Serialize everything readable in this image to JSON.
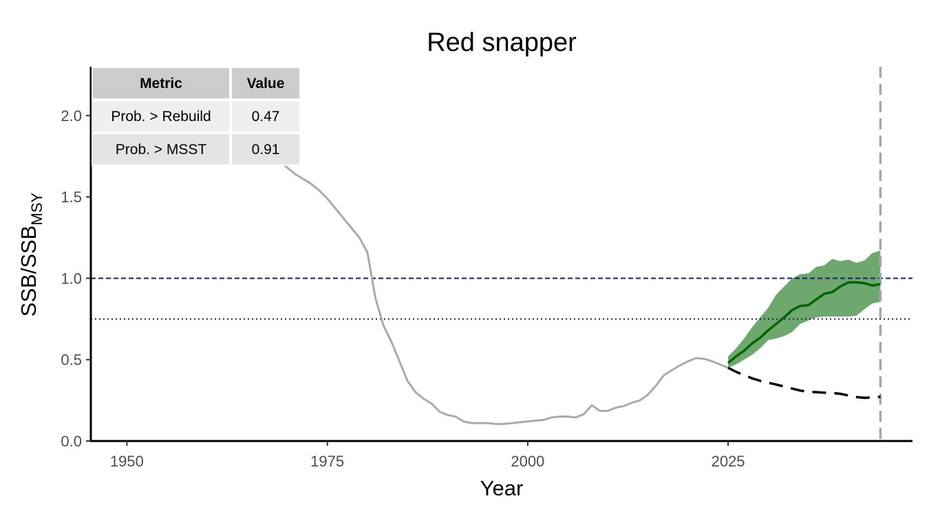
{
  "chart_data": {
    "type": "line",
    "title": "Red snapper",
    "xlabel": "Year",
    "ylabel": {
      "main": "SSB/SSB",
      "subscript": "MSY"
    },
    "xlim": [
      1945.5,
      2048
    ],
    "ylim": [
      0,
      2.3
    ],
    "xticks": [
      1950,
      1975,
      2000,
      2025
    ],
    "yticks": [
      "0.0",
      "0.5",
      "1.0",
      "1.5",
      "2.0"
    ],
    "grid": false,
    "reference_lines": [
      {
        "y": 1.0,
        "style": "dashed",
        "color": "#191970"
      },
      {
        "y": 0.75,
        "style": "dotted",
        "color": "#191970"
      }
    ],
    "vertical_line": {
      "x": 2044,
      "style": "dashed",
      "color": "#a6a6a6"
    },
    "series": [
      {
        "color": "#aaaaaa",
        "x": [
          1965,
          1966,
          1967,
          1968,
          1969,
          1970,
          1971,
          1972,
          1973,
          1974,
          1975,
          1976,
          1977,
          1978,
          1979,
          1980,
          1981,
          1982,
          1983,
          1984,
          1985,
          1986,
          1987,
          1988,
          1989,
          1990,
          1991,
          1992,
          1993,
          1994,
          1995,
          1996,
          1997,
          1998,
          1999,
          2000,
          2001,
          2002,
          2003,
          2004,
          2005,
          2006,
          2007,
          2008,
          2009,
          2010,
          2011,
          2012,
          2013,
          2014,
          2015,
          2016,
          2017,
          2018,
          2019,
          2020,
          2021,
          2022,
          2023,
          2024,
          2025
        ],
        "y": [
          1.95,
          1.89,
          1.83,
          1.77,
          1.72,
          1.68,
          1.64,
          1.61,
          1.58,
          1.54,
          1.49,
          1.43,
          1.37,
          1.31,
          1.25,
          1.16,
          0.88,
          0.71,
          0.61,
          0.49,
          0.37,
          0.3,
          0.26,
          0.23,
          0.18,
          0.16,
          0.15,
          0.12,
          0.11,
          0.11,
          0.11,
          0.105,
          0.105,
          0.11,
          0.115,
          0.12,
          0.125,
          0.13,
          0.145,
          0.15,
          0.15,
          0.145,
          0.165,
          0.22,
          0.185,
          0.185,
          0.205,
          0.215,
          0.235,
          0.25,
          0.285,
          0.34,
          0.405,
          0.435,
          0.465,
          0.49,
          0.51,
          0.505,
          0.49,
          0.47,
          0.45
        ]
      },
      {
        "color": "#006400",
        "x": [
          2025,
          2026,
          2027,
          2028,
          2029,
          2030,
          2031,
          2032,
          2033,
          2034,
          2035,
          2036,
          2037,
          2038,
          2039,
          2040,
          2041,
          2042,
          2043,
          2044
        ],
        "y": [
          0.48,
          0.52,
          0.555,
          0.6,
          0.635,
          0.68,
          0.72,
          0.76,
          0.805,
          0.83,
          0.835,
          0.87,
          0.905,
          0.915,
          0.95,
          0.975,
          0.975,
          0.97,
          0.955,
          0.965
        ]
      },
      {
        "color": "#000000",
        "style": "dashed",
        "x": [
          2025,
          2026,
          2027,
          2028,
          2029,
          2030,
          2031,
          2032,
          2033,
          2034,
          2035,
          2036,
          2037,
          2038,
          2039,
          2040,
          2041,
          2042,
          2043,
          2044
        ],
        "y": [
          0.45,
          0.425,
          0.405,
          0.385,
          0.37,
          0.358,
          0.347,
          0.335,
          0.322,
          0.31,
          0.302,
          0.3,
          0.297,
          0.295,
          0.29,
          0.28,
          0.27,
          0.265,
          0.268,
          0.272
        ]
      }
    ],
    "ribbon": {
      "color": "#6fa86f",
      "x": [
        2025,
        2026,
        2027,
        2028,
        2029,
        2030,
        2031,
        2032,
        2033,
        2034,
        2035,
        2036,
        2037,
        2038,
        2039,
        2040,
        2041,
        2042,
        2043,
        2044
      ],
      "lower": [
        0.45,
        0.47,
        0.5,
        0.53,
        0.57,
        0.62,
        0.63,
        0.645,
        0.67,
        0.72,
        0.74,
        0.76,
        0.765,
        0.765,
        0.765,
        0.765,
        0.77,
        0.81,
        0.845,
        0.855
      ],
      "upper": [
        0.52,
        0.57,
        0.63,
        0.7,
        0.76,
        0.82,
        0.9,
        0.95,
        1.0,
        1.025,
        1.03,
        1.07,
        1.08,
        1.12,
        1.105,
        1.115,
        1.095,
        1.11,
        1.155,
        1.17
      ]
    }
  },
  "table": {
    "headers": [
      "Metric",
      "Value"
    ],
    "rows": [
      {
        "metric": "Prob. > Rebuild",
        "value": "0.47"
      },
      {
        "metric": "Prob. > MSST",
        "value": "0.91"
      }
    ]
  }
}
